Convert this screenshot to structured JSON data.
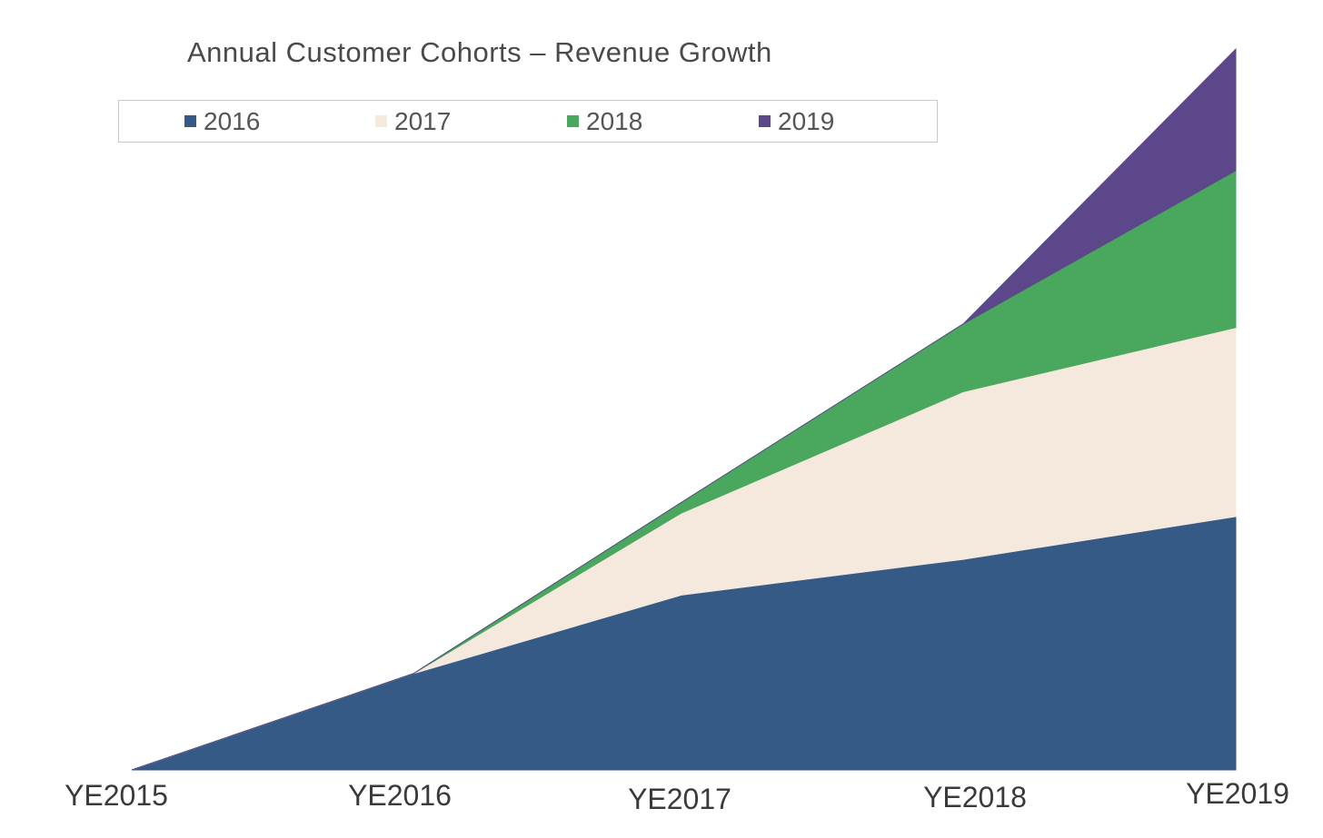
{
  "chart_data": {
    "type": "area",
    "stacked": true,
    "title": "Annual Customer Cohorts – Revenue Growth",
    "xlabel": "",
    "ylabel": "",
    "categories": [
      "YE2015",
      "YE2016",
      "YE2017",
      "YE2018",
      "YE2019"
    ],
    "ylim": [
      0,
      100
    ],
    "grid": false,
    "legend_position": "top",
    "series": [
      {
        "name": "2016",
        "color": "#355A85",
        "values": [
          0,
          13.5,
          24.5,
          29.5,
          35.5
        ]
      },
      {
        "name": "2017",
        "color": "#F5E8DC",
        "values": [
          0,
          0,
          11.5,
          23.5,
          26.5
        ]
      },
      {
        "name": "2018",
        "color": "#4AA85E",
        "values": [
          0,
          0,
          1.5,
          9.5,
          22
        ]
      },
      {
        "name": "2019",
        "color": "#5C478A",
        "values": [
          0,
          0,
          0,
          0,
          17
        ]
      }
    ]
  }
}
